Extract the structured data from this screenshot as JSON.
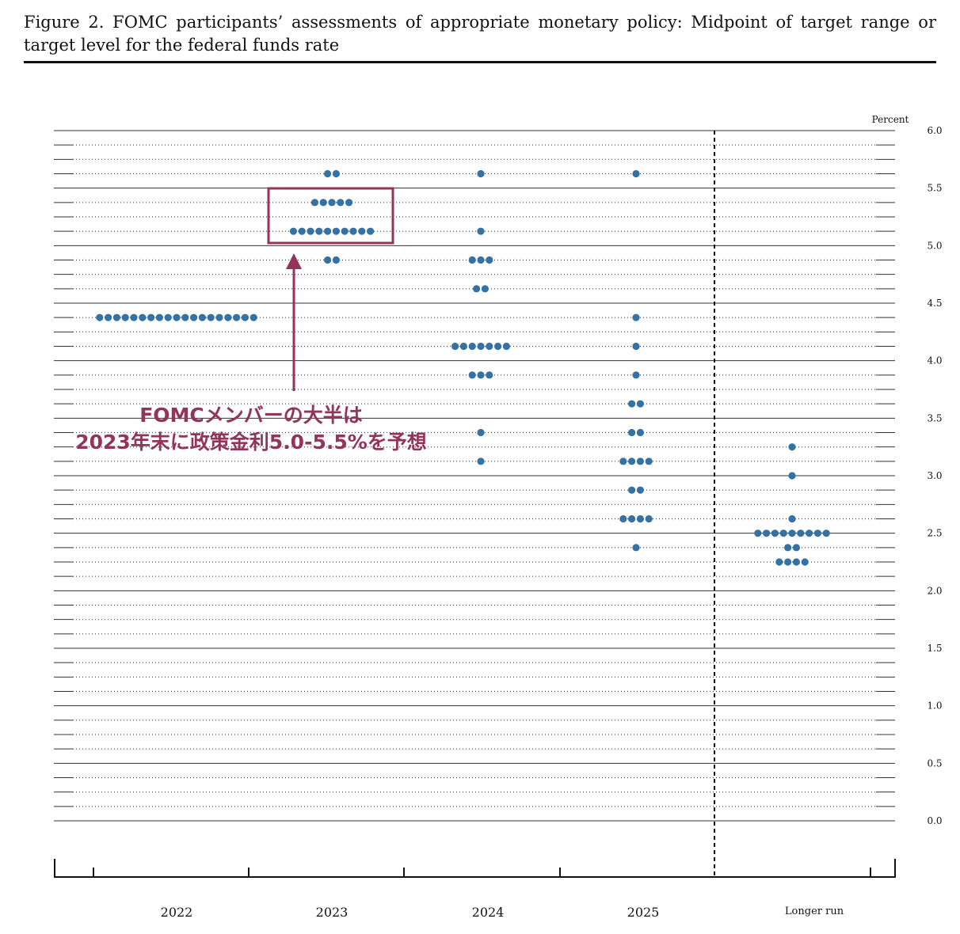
{
  "figure": {
    "title": "Figure 2.  FOMC participants’ assessments of appropriate monetary policy:  Midpoint of target range or target level for the federal funds rate"
  },
  "annotation": {
    "line1": "FOMCメンバーの大半は",
    "line2": "2023年末に政策金利5.0-5.5%を予想",
    "color": "#93345a"
  },
  "colors": {
    "dot": "#3472a5",
    "annotation": "#93345a",
    "grid": "#333333"
  },
  "chart_data": {
    "type": "scatter",
    "y_unit_label": "Percent",
    "ylim": [
      0,
      6
    ],
    "y_ticks": [
      "0.0",
      "0.5",
      "1.0",
      "1.5",
      "2.0",
      "2.5",
      "3.0",
      "3.5",
      "4.0",
      "4.5",
      "5.0",
      "5.5",
      "6.0"
    ],
    "categories": [
      "2022",
      "2023",
      "2024",
      "2025",
      "Longer run"
    ],
    "grid": "dotted lines every 0.125, solid lines every 0.5",
    "legend": "none",
    "dots": [
      {
        "category": "2022",
        "points": [
          {
            "rate": 4.375,
            "count": 19
          }
        ]
      },
      {
        "category": "2023",
        "points": [
          {
            "rate": 5.625,
            "count": 2
          },
          {
            "rate": 5.375,
            "count": 5
          },
          {
            "rate": 5.125,
            "count": 10
          },
          {
            "rate": 4.875,
            "count": 2
          }
        ]
      },
      {
        "category": "2024",
        "points": [
          {
            "rate": 5.625,
            "count": 1
          },
          {
            "rate": 5.125,
            "count": 1
          },
          {
            "rate": 4.875,
            "count": 3
          },
          {
            "rate": 4.625,
            "count": 2
          },
          {
            "rate": 4.125,
            "count": 7
          },
          {
            "rate": 3.875,
            "count": 3
          },
          {
            "rate": 3.375,
            "count": 1
          },
          {
            "rate": 3.125,
            "count": 1
          }
        ]
      },
      {
        "category": "2025",
        "points": [
          {
            "rate": 5.625,
            "count": 1
          },
          {
            "rate": 4.375,
            "count": 1
          },
          {
            "rate": 4.125,
            "count": 1
          },
          {
            "rate": 3.875,
            "count": 1
          },
          {
            "rate": 3.625,
            "count": 2
          },
          {
            "rate": 3.375,
            "count": 2
          },
          {
            "rate": 3.125,
            "count": 4
          },
          {
            "rate": 2.875,
            "count": 2
          },
          {
            "rate": 2.625,
            "count": 4
          },
          {
            "rate": 2.375,
            "count": 1
          }
        ]
      },
      {
        "category": "Longer run",
        "points": [
          {
            "rate": 3.25,
            "count": 1
          },
          {
            "rate": 3.0,
            "count": 1
          },
          {
            "rate": 2.625,
            "count": 1
          },
          {
            "rate": 2.5,
            "count": 9
          },
          {
            "rate": 2.375,
            "count": 2
          },
          {
            "rate": 2.25,
            "count": 4
          }
        ]
      }
    ],
    "highlight": {
      "category": "2023",
      "rates": [
        5.375,
        5.125
      ]
    }
  }
}
